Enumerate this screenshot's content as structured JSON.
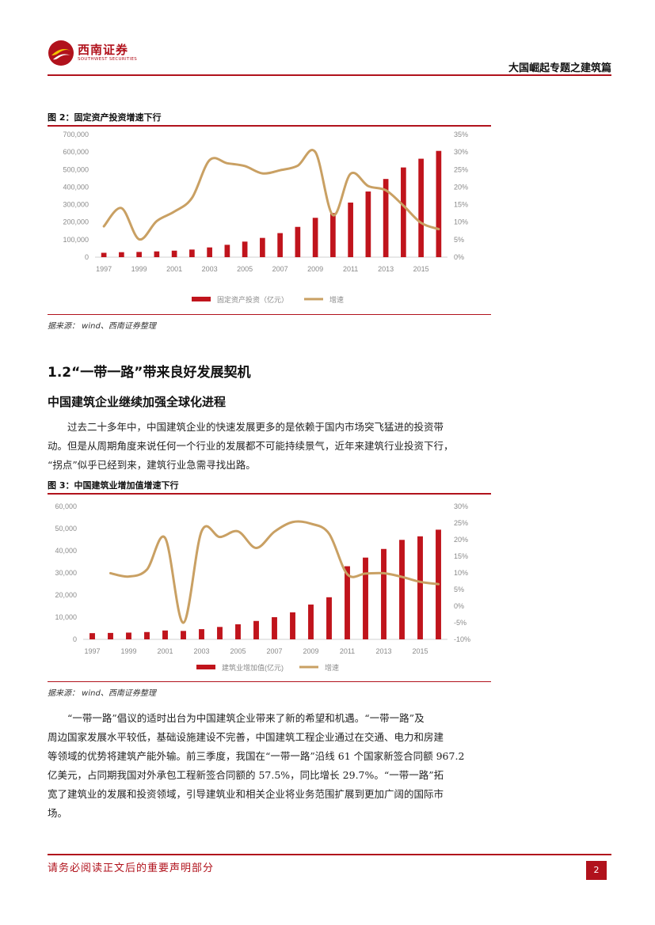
{
  "header": {
    "logo_cn": "西南证券",
    "logo_en": "SOUTHWEST SECURITIES",
    "title": "大国崛起专题之建筑篇"
  },
  "figure2": {
    "caption": "图 2：固定资产投资增速下行",
    "source": "据来源：  wind、西南证券整理"
  },
  "figure3": {
    "caption": "图 3：中国建筑业增加值增速下行",
    "source": "据来源：  wind、西南证券整理"
  },
  "section": {
    "heading": "1.2“一带一路”带来良好发展契机",
    "subheading": "中国建筑企业继续加强全球化进程",
    "para1_lines": [
      "过去二十多年中，中国建筑企业的快速发展更多的是依赖于国内市场突飞猛进的投资带",
      "动。但是从周期角度来说任何一个行业的发展都不可能持续景气，近年来建筑行业投资下行，",
      "“拐点”似乎已经到来，建筑行业急需寻找出路。"
    ],
    "para2_lines": [
      "“一带一路”倡议的适时出台为中国建筑企业带来了新的希望和机遇。“一带一路”及",
      "周边国家发展水平较低，基础设施建设不完善，中国建筑工程企业通过在交通、电力和房建",
      "等领域的优势将建筑产能外输。前三季度，我国在“一带一路”沿线 61 个国家新签合同额 967.2",
      "亿美元，占同期我国对外承包工程新签合同额的 57.5%，同比增长 29.7%。“一带一路”拓",
      "宽了建筑业的发展和投资领域，引导建筑业和相关企业将业务范围扩展到更加广阔的国际市",
      "场。"
    ]
  },
  "footer": {
    "note": "请务必阅读正文后的重要声明部分",
    "page": "2"
  },
  "colors": {
    "brand": "#b1121c",
    "bar": "#c0141c",
    "line": "#c9a063"
  },
  "chart_data": [
    {
      "type": "bar",
      "title": "",
      "x": [
        1997,
        1998,
        1999,
        2000,
        2001,
        2002,
        2003,
        2004,
        2005,
        2006,
        2007,
        2008,
        2009,
        2010,
        2011,
        2012,
        2013,
        2014,
        2015,
        2016
      ],
      "x_tick_labels": [
        "1997",
        "1999",
        "2001",
        "2003",
        "2005",
        "2007",
        "2009",
        "2011",
        "2013",
        "2015"
      ],
      "ylim": [
        0,
        700000
      ],
      "y_ticks": [
        "0",
        "100,000",
        "200,000",
        "300,000",
        "400,000",
        "500,000",
        "600,000",
        "700,000"
      ],
      "y2lim": [
        0,
        35
      ],
      "y2_ticks": [
        "0%",
        "5%",
        "10%",
        "15%",
        "20%",
        "25%",
        "30%",
        "35%"
      ],
      "legend_position": "bottom",
      "series": [
        {
          "name": "固定资产投资（亿元）",
          "type": "bar",
          "axis": "left",
          "values": [
            24900,
            28400,
            29900,
            32900,
            37200,
            43500,
            55600,
            70500,
            88800,
            109900,
            137300,
            172800,
            224600,
            251700,
            311500,
            374700,
            446300,
            512000,
            561900,
            606500
          ]
        },
        {
          "name": "增速",
          "type": "line",
          "axis": "right",
          "values": [
            8.8,
            14,
            5.1,
            10.3,
            13,
            16.9,
            27.7,
            26.8,
            26,
            23.9,
            24.8,
            26.1,
            30,
            12,
            23.8,
            20.3,
            19.1,
            14.7,
            9.8,
            8
          ]
        }
      ]
    },
    {
      "type": "bar",
      "title": "",
      "x": [
        1997,
        1998,
        1999,
        2000,
        2001,
        2002,
        2003,
        2004,
        2005,
        2006,
        2007,
        2008,
        2009,
        2010,
        2011,
        2012,
        2013,
        2014,
        2015,
        2016
      ],
      "x_tick_labels": [
        "1997",
        "1999",
        "2001",
        "2003",
        "2005",
        "2007",
        "2009",
        "2011",
        "2013",
        "2015"
      ],
      "ylim": [
        0,
        60000
      ],
      "y_ticks": [
        "0",
        "10,000",
        "20,000",
        "30,000",
        "40,000",
        "50,000",
        "60,000"
      ],
      "y2lim": [
        -10,
        30
      ],
      "y2_ticks": [
        "-10%",
        "-5%",
        "0%",
        "5%",
        "10%",
        "15%",
        "20%",
        "25%",
        "30%"
      ],
      "legend_position": "bottom",
      "series": [
        {
          "name": "建筑业增加值(亿元)",
          "type": "bar",
          "axis": "left",
          "values": [
            2800,
            2900,
            3050,
            3300,
            4000,
            3800,
            4600,
            5600,
            6800,
            8300,
            10000,
            12200,
            15700,
            19000,
            33000,
            36900,
            40800,
            44900,
            46500,
            49500
          ]
        },
        {
          "name": "增速",
          "type": "line",
          "axis": "right",
          "values": [
            null,
            9.9,
            8.9,
            11,
            20.5,
            -5,
            22.5,
            20.8,
            22.5,
            17.5,
            22.4,
            25.3,
            24.8,
            21.8,
            9.6,
            9.8,
            9.9,
            8.8,
            7.3,
            6.6
          ]
        }
      ]
    }
  ]
}
